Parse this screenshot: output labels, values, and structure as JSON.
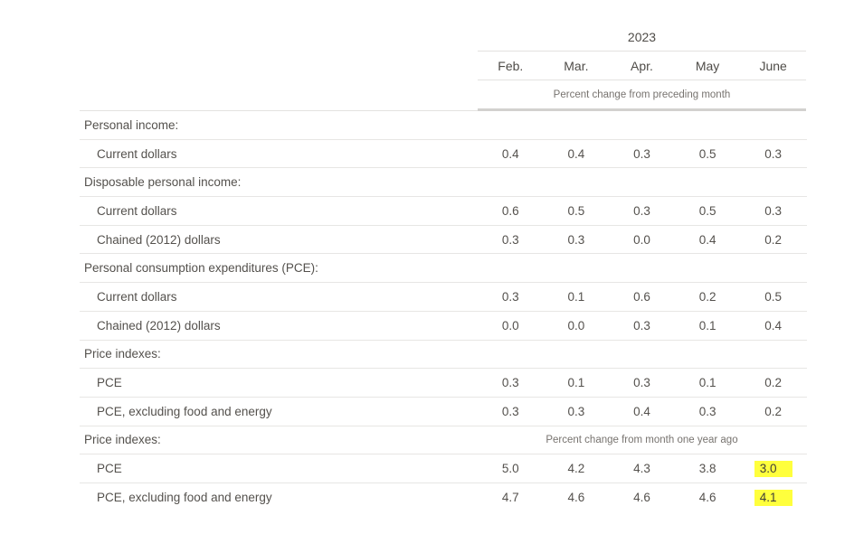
{
  "chart_data": {
    "type": "table",
    "year_header": "2023",
    "columns": [
      "Feb.",
      "Mar.",
      "Apr.",
      "May",
      "June"
    ],
    "unit_note_top": "Percent change from preceding month",
    "unit_note_bottom": "Percent change from month one year ago",
    "colors": {
      "highlight": "#ffff3d",
      "text": "#54514d",
      "muted_text": "#77736f",
      "border": "#e7e6e4",
      "border_strong": "#d2d1cf"
    },
    "rows": [
      {
        "label": "Personal income:",
        "indent": false,
        "values": []
      },
      {
        "label": "Current dollars",
        "indent": true,
        "values": [
          "0.4",
          "0.4",
          "0.3",
          "0.5",
          "0.3"
        ]
      },
      {
        "label": "Disposable personal income:",
        "indent": false,
        "values": []
      },
      {
        "label": "Current dollars",
        "indent": true,
        "values": [
          "0.6",
          "0.5",
          "0.3",
          "0.5",
          "0.3"
        ]
      },
      {
        "label": "Chained (2012) dollars",
        "indent": true,
        "values": [
          "0.3",
          "0.3",
          "0.0",
          "0.4",
          "0.2"
        ]
      },
      {
        "label": "Personal consumption expenditures (PCE):",
        "indent": false,
        "values": []
      },
      {
        "label": "Current dollars",
        "indent": true,
        "values": [
          "0.3",
          "0.1",
          "0.6",
          "0.2",
          "0.5"
        ]
      },
      {
        "label": "Chained (2012) dollars",
        "indent": true,
        "values": [
          "0.0",
          "0.0",
          "0.3",
          "0.1",
          "0.4"
        ]
      },
      {
        "label": "Price indexes:",
        "indent": false,
        "values": []
      },
      {
        "label": "PCE",
        "indent": true,
        "values": [
          "0.3",
          "0.1",
          "0.3",
          "0.1",
          "0.2"
        ]
      },
      {
        "label": "PCE, excluding food and energy",
        "indent": true,
        "values": [
          "0.3",
          "0.3",
          "0.4",
          "0.3",
          "0.2"
        ]
      },
      {
        "label": "Price indexes:",
        "indent": false,
        "values": [],
        "spanning_note": "Percent change from month one year ago"
      },
      {
        "label": "PCE",
        "indent": true,
        "values": [
          "5.0",
          "4.2",
          "4.3",
          "3.8",
          "3.0"
        ],
        "highlight": [
          4
        ]
      },
      {
        "label": "PCE, excluding food and energy",
        "indent": true,
        "values": [
          "4.7",
          "4.6",
          "4.6",
          "4.6",
          "4.1"
        ],
        "highlight": [
          4
        ]
      }
    ]
  }
}
